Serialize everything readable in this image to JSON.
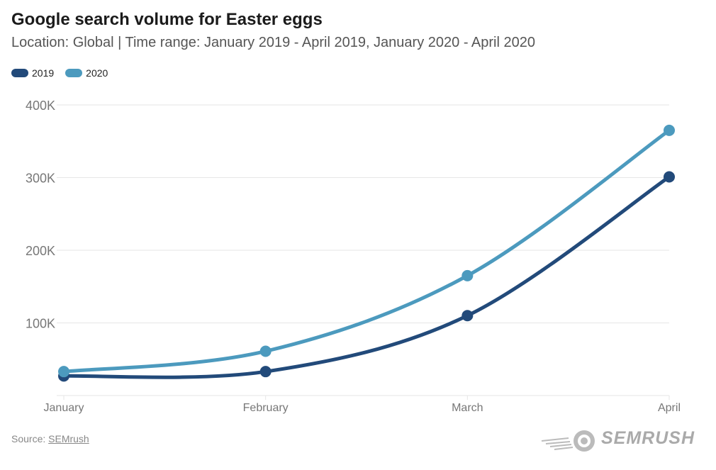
{
  "title": "Google search volume for Easter eggs",
  "subtitle": "Location: Global | Time range: January 2019 - April 2019, January 2020 - April 2020",
  "source": {
    "prefix": "Source:",
    "link_text": "SEMrush"
  },
  "brand": {
    "name": "SEMRUSH",
    "icon": "semrush-fireball-logo"
  },
  "colors": {
    "series_2019": "#224a7a",
    "series_2020": "#4c9abe",
    "grid": "#e6e6e6",
    "tick_label": "#777777"
  },
  "chart_data": {
    "type": "line",
    "categories": [
      "January",
      "February",
      "March",
      "April"
    ],
    "series": [
      {
        "name": "2019",
        "values": [
          27000,
          33000,
          110000,
          301000
        ]
      },
      {
        "name": "2020",
        "values": [
          33000,
          61000,
          165000,
          365000
        ]
      }
    ],
    "y_ticks": [
      100000,
      200000,
      300000,
      400000
    ],
    "y_tick_labels": [
      "100K",
      "200K",
      "300K",
      "400K"
    ],
    "ylim": [
      0,
      400000
    ],
    "grid": true,
    "legend_position": "top-left",
    "smooth": true,
    "markers": true
  }
}
